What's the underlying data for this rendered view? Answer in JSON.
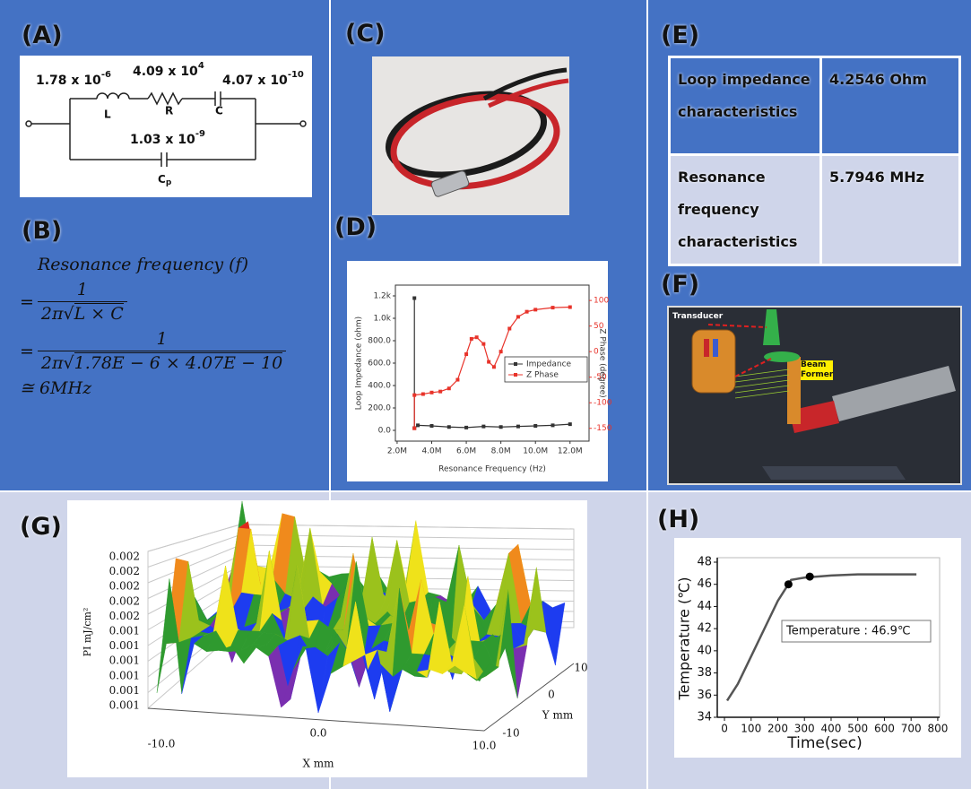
{
  "panels": {
    "a": {
      "label": "(A)",
      "circuit": {
        "inductance": {
          "base": "1.78 x 10",
          "exp": "-6"
        },
        "resistance": {
          "base": "4.09 x 10",
          "exp": "4"
        },
        "capacitance": {
          "base": "4.07 x 10",
          "exp": "-10"
        },
        "parallel_capacitance": {
          "base": "1.03 x 10",
          "exp": "-9"
        },
        "inductor_label": "L",
        "resistor_label": "R",
        "capacitor_label": "C",
        "parallel_capacitor_label": {
          "base": "C",
          "sub": "p"
        }
      }
    },
    "b": {
      "label": "(B)",
      "line1": "Resonance frequency (f)",
      "eq1": {
        "sign": "=",
        "numerator": "1",
        "coefficient": "2π√",
        "radicand": "L × C"
      },
      "eq2": {
        "sign": "=",
        "numerator": "1",
        "coefficient": "2π√",
        "radicand": "1.78E − 6 × 4.07E − 10"
      },
      "result": "≅ 6MHz"
    },
    "c": {
      "label": "(C)"
    },
    "d": {
      "label": "(D)"
    },
    "e": {
      "label": "(E)",
      "table": {
        "rows": [
          [
            "Loop impedance characteristics",
            "4.2546 Ohm"
          ],
          [
            "Resonance frequency characteristics",
            "5.7946 MHz"
          ]
        ]
      }
    },
    "f": {
      "label": "(F)",
      "callouts": [
        "Transducer",
        "Beam Former"
      ]
    },
    "g": {
      "label": "(G)",
      "z_label": "PI mJ/cm²",
      "z_ticks": [
        "0.002",
        "0.002",
        "0.002",
        "0.002",
        "0.002",
        "0.001",
        "0.001",
        "0.001",
        "0.001",
        "0.001",
        "0.001"
      ],
      "x_label": "X mm",
      "x_ticks": [
        "-10.0",
        "0.0",
        "10.0"
      ],
      "y_label": "Y mm",
      "y_ticks": [
        "10",
        "0",
        "-10"
      ]
    },
    "h": {
      "label": "(H)"
    }
  },
  "chart_data": [
    {
      "type": "line",
      "x_label": "Resonance Frequency (Hz)",
      "y_label": "Loop Impedance (ohm)",
      "y2_label": "Z Phase (degree)",
      "xlim": [
        1900000,
        13100000
      ],
      "xticks": [
        {
          "value": 2000000,
          "label": "2.0M"
        },
        {
          "value": 4000000,
          "label": "4.0M"
        },
        {
          "value": 6000000,
          "label": "6.0M"
        },
        {
          "value": 8000000,
          "label": "8.0M"
        },
        {
          "value": 10000000,
          "label": "10.0M"
        },
        {
          "value": 12000000,
          "label": "12.0M"
        }
      ],
      "ylim": [
        -96,
        1296
      ],
      "yticks": [
        {
          "value": 0,
          "label": "0.0"
        },
        {
          "value": 200,
          "label": "200.0"
        },
        {
          "value": 400,
          "label": "400.0"
        },
        {
          "value": 600,
          "label": "600.0"
        },
        {
          "value": 800,
          "label": "800.0"
        },
        {
          "value": 1000,
          "label": "1.0k"
        },
        {
          "value": 1200,
          "label": "1.2k"
        }
      ],
      "y2lim": [
        -175,
        130
      ],
      "y2ticks": [
        -150,
        -100,
        -50,
        0,
        50,
        100
      ],
      "y2_color": "#e8332a",
      "series": [
        {
          "name": "Impedance",
          "color": "#333333",
          "x": [
            3000000,
            3000000,
            3200000,
            4000000,
            5000000,
            6000000,
            7000000,
            8000000,
            9000000,
            10000000,
            11000000,
            12000000
          ],
          "values": [
            1180,
            20,
            45,
            40,
            30,
            25,
            35,
            30,
            35,
            40,
            45,
            55
          ]
        },
        {
          "name": "Z Phase",
          "color": "#e8332a",
          "axis": "y2",
          "x": [
            3000000,
            3000000,
            3500000,
            4000000,
            4500000,
            5000000,
            5500000,
            6000000,
            6300000,
            6600000,
            7000000,
            7300000,
            7600000,
            8000000,
            8500000,
            9000000,
            9500000,
            10000000,
            11000000,
            12000000
          ],
          "values": [
            -150,
            -85,
            -83,
            -80,
            -78,
            -72,
            -55,
            -5,
            25,
            28,
            15,
            -20,
            -30,
            0,
            45,
            68,
            78,
            82,
            86,
            87
          ]
        }
      ],
      "legend": "right"
    },
    {
      "type": "line",
      "x_label": "Time(sec)",
      "y_label": "Temperature (℃)",
      "annotation": "Temperature : 46.9℃",
      "xlim": [
        -27,
        807
      ],
      "xticks": [
        0,
        100,
        200,
        300,
        400,
        500,
        600,
        700,
        800
      ],
      "ylim": [
        34,
        48
      ],
      "yticks": [
        34,
        36,
        38,
        40,
        42,
        44,
        46,
        48
      ],
      "series": [
        {
          "color": "#555555",
          "x": [
            10,
            50,
            100,
            150,
            200,
            250,
            300,
            400,
            500,
            600,
            720
          ],
          "values": [
            35.5,
            37,
            39.5,
            42,
            44.5,
            46.4,
            46.6,
            46.8,
            46.9,
            46.9,
            46.9
          ]
        }
      ],
      "points": {
        "color": "#000000",
        "x": [
          240,
          320
        ],
        "values": [
          46.0,
          46.7
        ]
      }
    }
  ]
}
